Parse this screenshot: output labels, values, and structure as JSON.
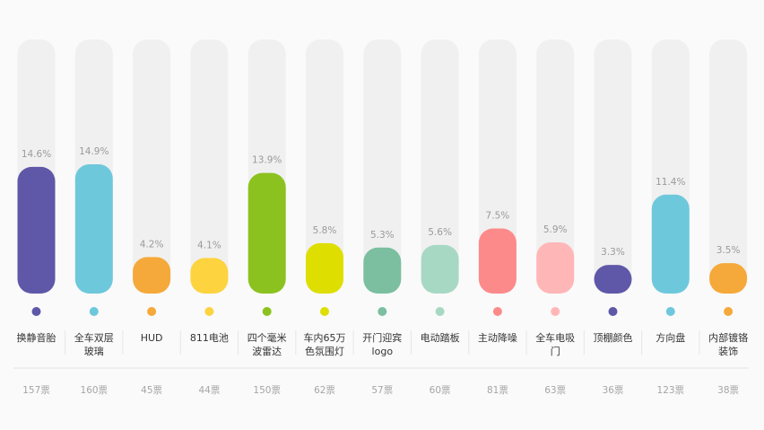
{
  "chart_data": {
    "type": "bar",
    "ylim": [
      0,
      30
    ],
    "categories": [
      [
        "换静音胎"
      ],
      [
        "全车双层",
        "玻璃"
      ],
      [
        "HUD"
      ],
      [
        "811电池"
      ],
      [
        "四个毫米",
        "波雷达"
      ],
      [
        "车内65万",
        "色氛围灯"
      ],
      [
        "开门迎宾",
        "logo"
      ],
      [
        "电动踏板"
      ],
      [
        "主动降噪"
      ],
      [
        "全车电吸",
        "门"
      ],
      [
        "顶棚颜色"
      ],
      [
        "方向盘"
      ],
      [
        "内部镀铬",
        "装饰"
      ]
    ],
    "values": [
      14.6,
      14.9,
      4.2,
      4.1,
      13.9,
      5.8,
      5.3,
      5.6,
      7.5,
      5.9,
      3.3,
      11.4,
      3.5
    ],
    "value_labels": [
      "14.6%",
      "14.9%",
      "4.2%",
      "4.1%",
      "13.9%",
      "5.8%",
      "5.3%",
      "5.6%",
      "7.5%",
      "5.9%",
      "3.3%",
      "11.4%",
      "3.5%"
    ],
    "votes": [
      "157票",
      "160票",
      "45票",
      "44票",
      "150票",
      "62票",
      "57票",
      "60票",
      "81票",
      "63票",
      "36票",
      "123票",
      "38票"
    ],
    "colors": [
      "#5f58a8",
      "#6ec8dc",
      "#f5a93a",
      "#fdd33f",
      "#8cc21f",
      "#dede00",
      "#7bbfa0",
      "#a7d8c4",
      "#fd8a8a",
      "#ffb6b7",
      "#5f58a8",
      "#6ec8dc",
      "#f5a93a"
    ],
    "track_color": "#f0f0f0",
    "grid": false
  }
}
